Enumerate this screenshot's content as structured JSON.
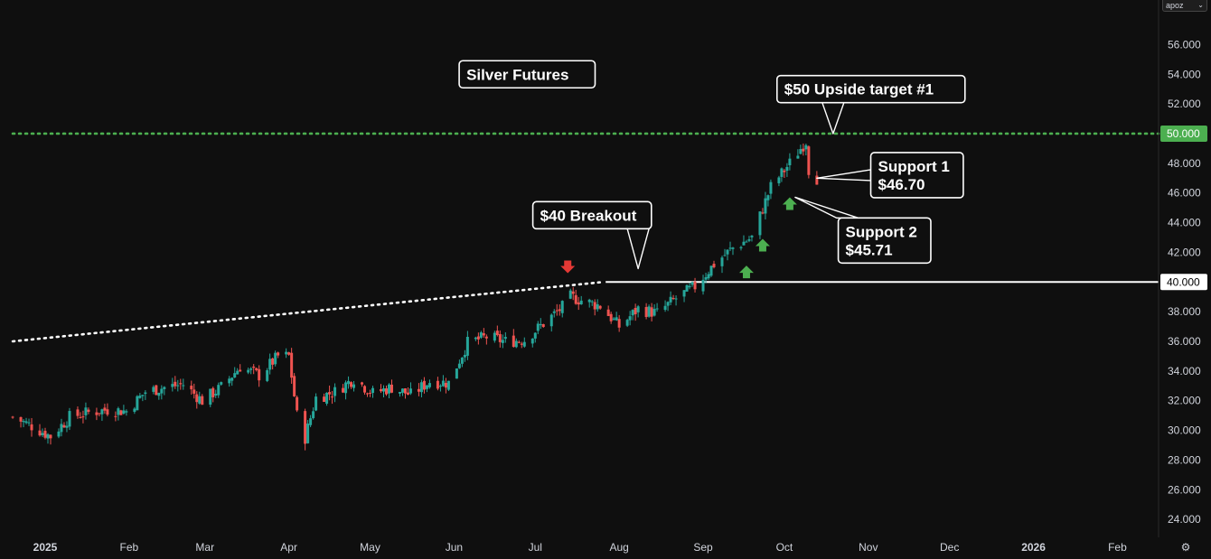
{
  "symbol_selector": {
    "label": "apoz",
    "icon": "chevron-down-icon"
  },
  "settings_icon": "gear-icon",
  "colors": {
    "background": "#0f0f0f",
    "up": "#26a69a",
    "down": "#ef5350",
    "green_marker": "#4caf50",
    "red_marker": "#e53935",
    "target_line": "#4caf50",
    "support_line": "#ffffff"
  },
  "chart_data": {
    "type": "candlestick",
    "title": "Silver Futures",
    "ylim": [
      23,
      58
    ],
    "y_ticks": [
      "24.000",
      "26.000",
      "28.000",
      "30.000",
      "32.000",
      "34.000",
      "36.000",
      "38.000",
      "40.000",
      "42.000",
      "44.000",
      "46.000",
      "48.000",
      "50.000",
      "52.000",
      "54.000",
      "56.000"
    ],
    "x_ticks": [
      {
        "label": "2025",
        "date": "2025-01-01",
        "bold": true
      },
      {
        "label": "Feb",
        "date": "2025-02-01"
      },
      {
        "label": "Mar",
        "date": "2025-03-01"
      },
      {
        "label": "Apr",
        "date": "2025-04-01"
      },
      {
        "label": "May",
        "date": "2025-05-01"
      },
      {
        "label": "Jun",
        "date": "2025-06-01"
      },
      {
        "label": "Jul",
        "date": "2025-07-01"
      },
      {
        "label": "Aug",
        "date": "2025-08-01"
      },
      {
        "label": "Sep",
        "date": "2025-09-01"
      },
      {
        "label": "Oct",
        "date": "2025-10-01"
      },
      {
        "label": "Nov",
        "date": "2025-11-01"
      },
      {
        "label": "Dec",
        "date": "2025-12-01"
      },
      {
        "label": "2026",
        "date": "2026-01-01",
        "bold": true
      },
      {
        "label": "Feb",
        "date": "2026-02-01"
      }
    ],
    "price_series_close": [
      [
        "2024-12-20",
        30.9
      ],
      [
        "2024-12-27",
        30.3
      ],
      [
        "2025-01-03",
        29.6
      ],
      [
        "2025-01-10",
        30.9
      ],
      [
        "2025-01-17",
        31.2
      ],
      [
        "2025-01-24",
        31.4
      ],
      [
        "2025-01-31",
        31.3
      ],
      [
        "2025-02-07",
        32.6
      ],
      [
        "2025-02-14",
        32.9
      ],
      [
        "2025-02-21",
        33.1
      ],
      [
        "2025-02-28",
        32.0
      ],
      [
        "2025-03-07",
        32.9
      ],
      [
        "2025-03-14",
        34.3
      ],
      [
        "2025-03-21",
        33.7
      ],
      [
        "2025-03-28",
        35.0
      ],
      [
        "2025-04-01",
        35.0
      ],
      [
        "2025-04-04",
        31.0
      ],
      [
        "2025-04-07",
        29.5
      ],
      [
        "2025-04-11",
        32.2
      ],
      [
        "2025-04-18",
        32.6
      ],
      [
        "2025-04-25",
        33.5
      ],
      [
        "2025-05-02",
        32.5
      ],
      [
        "2025-05-09",
        32.9
      ],
      [
        "2025-05-16",
        32.4
      ],
      [
        "2025-05-23",
        33.3
      ],
      [
        "2025-05-30",
        33.2
      ],
      [
        "2025-06-06",
        35.9
      ],
      [
        "2025-06-13",
        36.3
      ],
      [
        "2025-06-20",
        36.0
      ],
      [
        "2025-06-27",
        36.1
      ],
      [
        "2025-07-04",
        37.2
      ],
      [
        "2025-07-11",
        38.3
      ],
      [
        "2025-07-14",
        39.0
      ],
      [
        "2025-07-21",
        38.6
      ],
      [
        "2025-07-25",
        38.4
      ],
      [
        "2025-08-01",
        37.0
      ],
      [
        "2025-08-08",
        38.2
      ],
      [
        "2025-08-15",
        37.9
      ],
      [
        "2025-08-22",
        38.9
      ],
      [
        "2025-08-29",
        39.7
      ],
      [
        "2025-09-05",
        41.2
      ],
      [
        "2025-09-12",
        42.3
      ],
      [
        "2025-09-19",
        43.0
      ],
      [
        "2025-09-26",
        46.4
      ],
      [
        "2025-10-03",
        48.0
      ],
      [
        "2025-10-07",
        49.0
      ],
      [
        "2025-10-09",
        49.5
      ],
      [
        "2025-10-10",
        47.6
      ],
      [
        "2025-10-13",
        47.0
      ]
    ],
    "lines": [
      {
        "name": "upside-target-line",
        "price": 50.0,
        "style": "dotted",
        "color": "#4caf50",
        "from": "2024-12-20",
        "to": "2026-02-28"
      },
      {
        "name": "breakout-level-line",
        "price": 40.0,
        "style": "solid",
        "color": "#ffffff",
        "from": "2025-07-27",
        "to": "2026-02-28"
      },
      {
        "name": "rising-trendline",
        "style": "dotted",
        "color": "#ffffff",
        "points": [
          [
            "2024-12-20",
            36.0
          ],
          [
            "2025-07-26",
            40.0
          ]
        ]
      }
    ],
    "price_badges": [
      {
        "value": "50.000",
        "price": 50.0,
        "bg": "#4caf50",
        "fg": "#ffffff"
      },
      {
        "value": "40.000",
        "price": 40.0,
        "bg": "#ffffff",
        "fg": "#000000"
      }
    ],
    "markers": [
      {
        "name": "red-down-arrow-marker",
        "date": "2025-07-13",
        "price": 40.9,
        "dir": "down",
        "color": "#e53935"
      },
      {
        "name": "green-up-arrow-marker-1",
        "date": "2025-09-17",
        "price": 40.8,
        "dir": "up",
        "color": "#4caf50"
      },
      {
        "name": "green-up-arrow-marker-2",
        "date": "2025-09-23",
        "price": 42.6,
        "dir": "up",
        "color": "#4caf50"
      },
      {
        "name": "green-up-arrow-marker-3",
        "date": "2025-10-03",
        "price": 45.4,
        "dir": "up",
        "color": "#4caf50"
      }
    ],
    "annotations": [
      {
        "name": "title-callout",
        "lines": [
          "Silver Futures"
        ],
        "date": "2025-06-28",
        "price": 54.0
      },
      {
        "name": "target-callout",
        "lines": [
          "$50 Upside target #1"
        ],
        "date": "2025-11-02",
        "price": 53.0,
        "pointer": {
          "date": "2025-10-19",
          "price": 50.0
        }
      },
      {
        "name": "breakout-callout",
        "lines": [
          "$40 Breakout"
        ],
        "date": "2025-07-22",
        "price": 44.5,
        "pointer": {
          "date": "2025-08-08",
          "price": 40.9
        }
      },
      {
        "name": "support-1-callout",
        "lines": [
          "Support 1",
          "$46.70"
        ],
        "date": "2025-11-19",
        "price": 47.2,
        "pointer": {
          "date": "2025-10-13",
          "price": 47.0
        }
      },
      {
        "name": "support-2-callout",
        "lines": [
          "Support 2",
          "$45.71"
        ],
        "date": "2025-11-07",
        "price": 42.8,
        "pointer": {
          "date": "2025-10-05",
          "price": 45.71
        }
      }
    ]
  }
}
